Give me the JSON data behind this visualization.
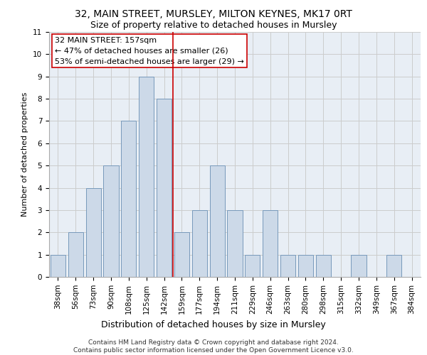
{
  "title1": "32, MAIN STREET, MURSLEY, MILTON KEYNES, MK17 0RT",
  "title2": "Size of property relative to detached houses in Mursley",
  "xlabel": "Distribution of detached houses by size in Mursley",
  "ylabel": "Number of detached properties",
  "categories": [
    "38sqm",
    "56sqm",
    "73sqm",
    "90sqm",
    "108sqm",
    "125sqm",
    "142sqm",
    "159sqm",
    "177sqm",
    "194sqm",
    "211sqm",
    "229sqm",
    "246sqm",
    "263sqm",
    "280sqm",
    "298sqm",
    "315sqm",
    "332sqm",
    "349sqm",
    "367sqm",
    "384sqm"
  ],
  "values": [
    1,
    2,
    4,
    5,
    7,
    9,
    8,
    2,
    3,
    5,
    3,
    1,
    3,
    1,
    1,
    1,
    0,
    1,
    0,
    1,
    0
  ],
  "bar_color": "#ccd9e8",
  "bar_edge_color": "#7799bb",
  "vline_x": 6.5,
  "vline_color": "#cc0000",
  "annotation_text": "32 MAIN STREET: 157sqm\n← 47% of detached houses are smaller (26)\n53% of semi-detached houses are larger (29) →",
  "annotation_box_color": "#ffffff",
  "annotation_box_edge": "#cc0000",
  "ylim": [
    0,
    11
  ],
  "yticks": [
    0,
    1,
    2,
    3,
    4,
    5,
    6,
    7,
    8,
    9,
    10,
    11
  ],
  "grid_color": "#cccccc",
  "bg_color": "#e8eef5",
  "footer": "Contains HM Land Registry data © Crown copyright and database right 2024.\nContains public sector information licensed under the Open Government Licence v3.0.",
  "title1_fontsize": 10,
  "title2_fontsize": 9,
  "xlabel_fontsize": 9,
  "ylabel_fontsize": 8,
  "tick_fontsize": 7.5,
  "annotation_fontsize": 8,
  "footer_fontsize": 6.5
}
